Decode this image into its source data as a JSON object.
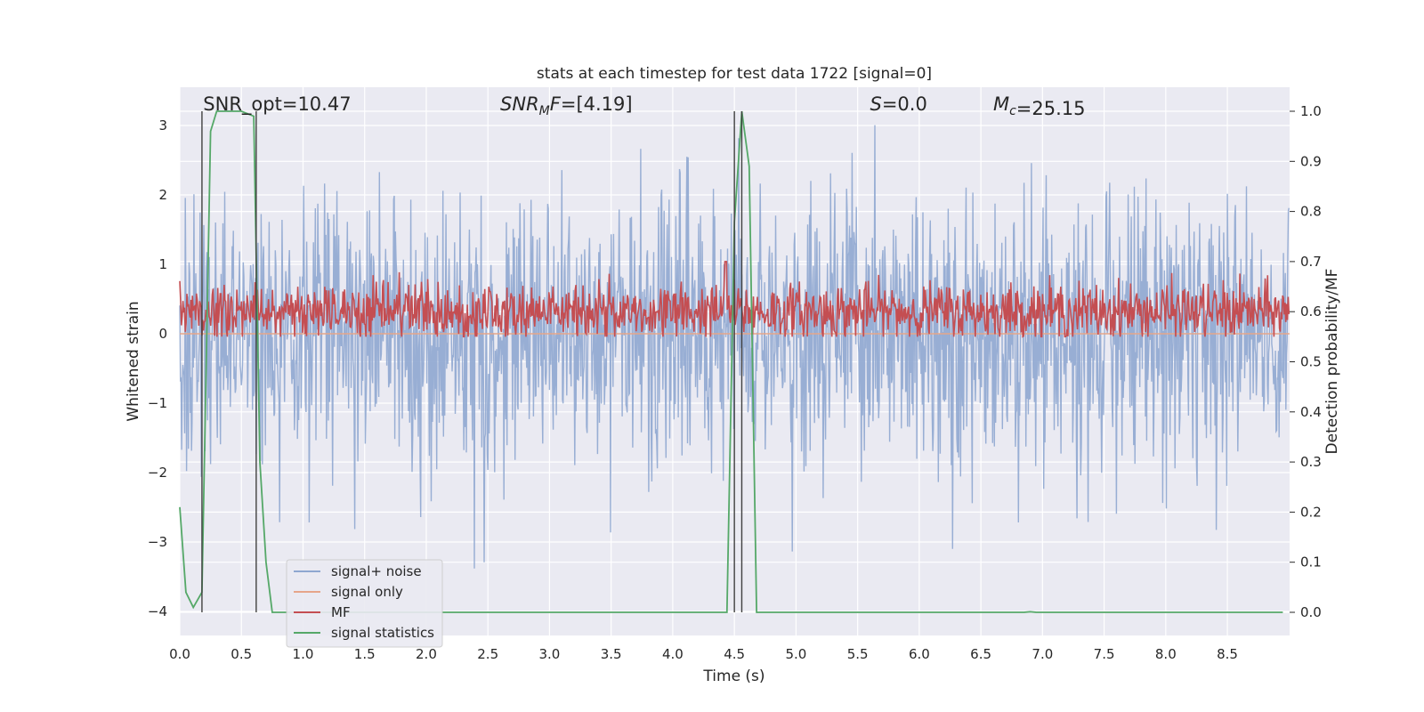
{
  "chart_data": {
    "type": "line",
    "title": "stats at each timestep for test data 1722 [signal=0]",
    "xlabel": "Time (s)",
    "ylabel": "Whitened strain",
    "ylabel_right": "Detection probability/MF",
    "xlim": [
      0.0,
      9.0
    ],
    "ylim": [
      -4.4,
      3.6
    ],
    "ylim_right": [
      -0.05,
      1.04
    ],
    "x_ticks": [
      "0.0",
      "0.5",
      "1.0",
      "1.5",
      "2.0",
      "2.5",
      "3.0",
      "3.5",
      "4.0",
      "4.5",
      "5.0",
      "5.5",
      "6.0",
      "6.5",
      "7.0",
      "7.5",
      "8.0",
      "8.5"
    ],
    "y_ticks": [
      "3",
      "2",
      "1",
      "0",
      "−1",
      "−2",
      "−3",
      "−4"
    ],
    "y_ticks_right": [
      "1.0",
      "0.9",
      "0.8",
      "0.7",
      "0.6",
      "0.5",
      "0.4",
      "0.3",
      "0.2",
      "0.1",
      "0.0"
    ],
    "grid": true,
    "legend_placement": "lower-left",
    "annotations": [
      {
        "prefix": "SNR_opt=",
        "sub": "",
        "value": "10.47",
        "x": 0.19
      },
      {
        "prefix": "SNR",
        "sub": "M",
        "suffix": "F=",
        "value": "[4.19]",
        "x": 2.6
      },
      {
        "prefix": "S",
        "sub": "",
        "value": "=0.0",
        "x": 5.6
      },
      {
        "prefix": "M",
        "sub": "c",
        "value": "=25.15",
        "x": 6.6
      }
    ],
    "vlines": [
      0.18,
      0.62,
      4.5,
      4.56
    ],
    "series": [
      {
        "name": "signal+ noise",
        "color": "#8fa7d0",
        "axis": "left",
        "style": "noise",
        "amplitude": 1.0
      },
      {
        "name": "signal only",
        "color": "#e6a58a",
        "axis": "left",
        "style": "flat",
        "value": 0.0
      },
      {
        "name": "MF",
        "color": "#c44e52",
        "axis": "right",
        "style": "mf",
        "baseline": 0.6,
        "spread": 0.04,
        "spike": {
          "x": 4.43,
          "value": 0.7
        }
      },
      {
        "name": "signal statistics",
        "color": "#55a868",
        "axis": "right",
        "style": "line",
        "x": [
          0.0,
          0.05,
          0.11,
          0.18,
          0.25,
          0.3,
          0.5,
          0.6,
          0.65,
          0.7,
          0.75,
          4.38,
          4.44,
          4.5,
          4.56,
          4.62,
          4.68,
          4.75,
          6.85,
          6.9,
          6.95,
          8.95
        ],
        "y": [
          0.21,
          0.04,
          0.01,
          0.04,
          0.96,
          1.0,
          1.0,
          0.99,
          0.3,
          0.1,
          0.0,
          0.0,
          0.0,
          0.78,
          1.0,
          0.89,
          0.0,
          0.0,
          0.0,
          0.001,
          0.0,
          0.0
        ]
      }
    ]
  }
}
